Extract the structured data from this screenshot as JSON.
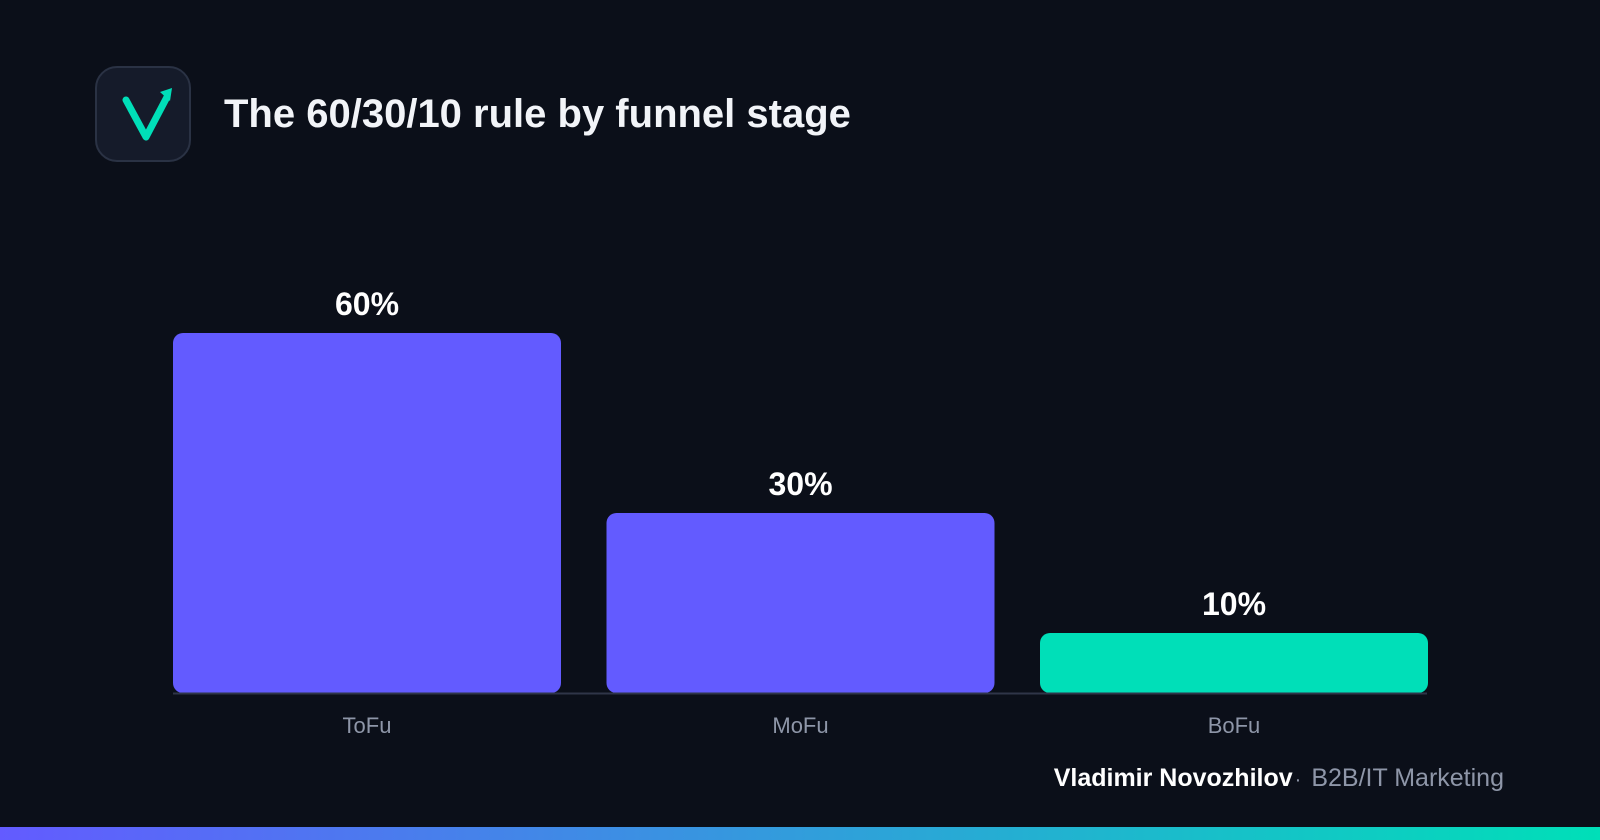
{
  "brand": {
    "logo_icon": "checkmark-arrow-logo-icon",
    "author_name": "Vladimir Novozhilov",
    "separator": "·",
    "author_role": "B2B/IT Marketing"
  },
  "colors": {
    "background": "#0b0f19",
    "primary_bar": "#635bff",
    "highlight_bar": "#00dfb8",
    "axis_line": "#2f3548",
    "label_muted": "#8e96a8",
    "gradient_start": "#635bff",
    "gradient_end": "#00dfb8"
  },
  "chart_data": {
    "type": "bar",
    "title": "The 60/30/10 rule by funnel stage",
    "categories": [
      "ToFu",
      "MoFu",
      "BoFu"
    ],
    "values": [
      60,
      30,
      10
    ],
    "value_labels": [
      "60%",
      "30%",
      "10%"
    ],
    "highlight_index": 2,
    "xlabel": "",
    "ylabel": "",
    "ylim": [
      0,
      60
    ],
    "grid": false,
    "legend": "none"
  }
}
